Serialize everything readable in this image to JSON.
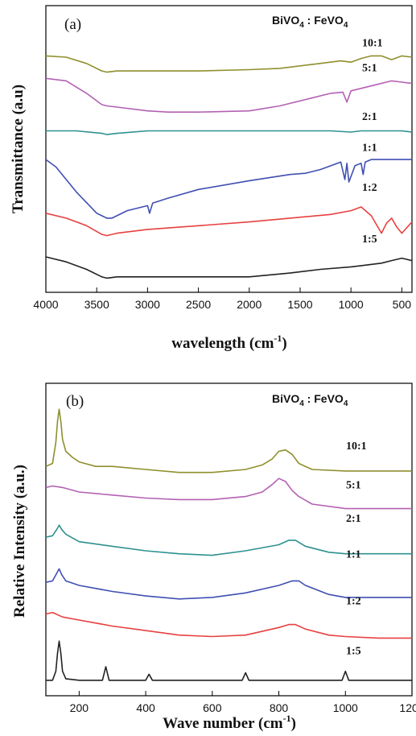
{
  "chart_data": [
    {
      "panel_label": "(a)",
      "type": "line",
      "xlabel": "wavelength (cm",
      "xlabel_sup": "-1",
      "xlabel_end": ")",
      "ylabel": "Transmittance (a.u)",
      "legend_title": "BiVO",
      "legend_title_sub1": "4",
      "legend_title_mid": " : FeVO",
      "legend_title_sub2": "4",
      "xlim": [
        4000,
        400
      ],
      "x_ticks": [
        "4000",
        "3500",
        "3000",
        "2500",
        "2000",
        "1500",
        "1000",
        "500"
      ],
      "x_tick_values": [
        4000,
        3500,
        3000,
        2500,
        2000,
        1500,
        1000,
        500
      ],
      "ylim": [
        0,
        10
      ],
      "series": [
        {
          "name": "10:1",
          "color": "#8f8f2e",
          "x": [
            4000,
            3800,
            3600,
            3450,
            3400,
            3300,
            3000,
            2500,
            2000,
            1700,
            1400,
            1100,
            1000,
            900,
            800,
            700,
            600,
            500,
            400
          ],
          "y": [
            9.05,
            9.0,
            8.75,
            8.45,
            8.4,
            8.45,
            8.45,
            8.45,
            8.5,
            8.55,
            8.7,
            8.85,
            8.8,
            8.95,
            9.05,
            9.05,
            8.9,
            9.05,
            9.0
          ]
        },
        {
          "name": "5:1",
          "color": "#b361b3",
          "x": [
            4000,
            3800,
            3600,
            3450,
            3400,
            3300,
            3000,
            2800,
            2500,
            2000,
            1700,
            1400,
            1200,
            1080,
            1040,
            1000,
            800,
            600,
            500,
            400
          ],
          "y": [
            8.15,
            8.05,
            7.55,
            7.1,
            7.05,
            7.0,
            6.85,
            6.8,
            6.8,
            6.85,
            7.05,
            7.35,
            7.55,
            7.6,
            7.2,
            7.65,
            7.85,
            8.05,
            8.0,
            7.95
          ]
        },
        {
          "name": "2:1",
          "color": "#2e9090",
          "x": [
            4000,
            3700,
            3450,
            3400,
            3300,
            3000,
            2500,
            2000,
            1500,
            1200,
            1000,
            900,
            800,
            600,
            500,
            400
          ],
          "y": [
            6.05,
            6.05,
            5.95,
            5.9,
            5.95,
            6.05,
            6.05,
            6.05,
            6.05,
            6.05,
            6.0,
            6.05,
            6.05,
            6.05,
            6.05,
            6.0
          ],
          "label_at": 6.65
        },
        {
          "name": "1:1",
          "color": "#3f4fb2",
          "x": [
            4000,
            3900,
            3700,
            3500,
            3400,
            3350,
            3200,
            3000,
            2980,
            2950,
            2800,
            2500,
            2000,
            1600,
            1450,
            1300,
            1100,
            1060,
            1040,
            1020,
            960,
            900,
            880,
            860,
            800,
            600,
            400
          ],
          "y": [
            4.9,
            4.6,
            3.6,
            2.75,
            2.55,
            2.55,
            2.85,
            3.05,
            2.75,
            3.15,
            3.35,
            3.7,
            4.05,
            4.3,
            4.35,
            4.5,
            4.8,
            4.1,
            4.75,
            4.0,
            4.65,
            4.75,
            4.3,
            4.8,
            4.9,
            4.9,
            4.9
          ],
          "label_at": 5.4
        },
        {
          "name": "1:2",
          "color": "#e84040",
          "x": [
            4000,
            3800,
            3600,
            3450,
            3400,
            3300,
            3000,
            2500,
            2000,
            1600,
            1200,
            1000,
            900,
            800,
            700,
            650,
            600,
            550,
            500,
            400
          ],
          "y": [
            2.75,
            2.55,
            2.25,
            1.9,
            1.85,
            1.95,
            2.1,
            2.25,
            2.4,
            2.55,
            2.7,
            2.85,
            3.0,
            2.65,
            1.95,
            2.35,
            2.55,
            2.2,
            1.95,
            2.4
          ],
          "label_at": 3.8
        },
        {
          "name": "1:5",
          "color": "#222222",
          "x": [
            4000,
            3800,
            3600,
            3450,
            3400,
            3300,
            3000,
            2500,
            2000,
            1600,
            1300,
            1000,
            900,
            700,
            600,
            500,
            400
          ],
          "y": [
            1.0,
            0.8,
            0.5,
            0.2,
            0.15,
            0.2,
            0.2,
            0.2,
            0.2,
            0.35,
            0.5,
            0.6,
            0.65,
            0.75,
            0.85,
            0.95,
            0.85
          ],
          "label_at": 1.75
        }
      ]
    },
    {
      "panel_label": "(b)",
      "type": "line",
      "xlabel": "Wave number (cm",
      "xlabel_sup": "-1",
      "xlabel_end": ")",
      "ylabel": "Relative Intensity (a.u.)",
      "legend_title": "BiVO",
      "legend_title_sub1": "4",
      "legend_title_mid": " : FeVO",
      "legend_title_sub2": "4",
      "xlim": [
        100,
        1200
      ],
      "x_ticks": [
        "200",
        "400",
        "600",
        "800",
        "1000",
        "1200"
      ],
      "x_tick_values": [
        200,
        400,
        600,
        800,
        1000,
        1200
      ],
      "ylim": [
        0,
        10
      ],
      "series": [
        {
          "name": "10:1",
          "color": "#8f8f2e",
          "x": [
            100,
            120,
            130,
            135,
            140,
            145,
            150,
            160,
            180,
            200,
            250,
            300,
            400,
            500,
            600,
            700,
            750,
            780,
            800,
            820,
            840,
            860,
            900,
            1000,
            1100,
            1200
          ],
          "y": [
            7.4,
            7.5,
            8.2,
            8.9,
            9.3,
            8.9,
            8.3,
            7.9,
            7.7,
            7.55,
            7.4,
            7.4,
            7.3,
            7.2,
            7.2,
            7.3,
            7.45,
            7.65,
            7.9,
            7.95,
            7.8,
            7.5,
            7.3,
            7.25,
            7.25,
            7.25
          ],
          "label_at": 8.1
        },
        {
          "name": "5:1",
          "color": "#b361b3",
          "x": [
            100,
            120,
            150,
            200,
            300,
            400,
            500,
            600,
            700,
            750,
            780,
            800,
            820,
            840,
            860,
            900,
            1000,
            1100,
            1200
          ],
          "y": [
            6.7,
            6.75,
            6.7,
            6.55,
            6.45,
            6.35,
            6.3,
            6.3,
            6.4,
            6.55,
            6.8,
            7.0,
            6.9,
            6.6,
            6.4,
            6.15,
            6.0,
            6.0,
            6.0
          ],
          "label_at": 6.8
        },
        {
          "name": "2:1",
          "color": "#2e9090",
          "x": [
            100,
            120,
            135,
            140,
            148,
            160,
            200,
            300,
            400,
            500,
            600,
            700,
            800,
            830,
            850,
            880,
            950,
            1000,
            1100,
            1200
          ],
          "y": [
            5.05,
            5.1,
            5.35,
            5.45,
            5.3,
            5.15,
            4.9,
            4.75,
            4.6,
            4.5,
            4.45,
            4.6,
            4.8,
            4.95,
            4.95,
            4.75,
            4.55,
            4.5,
            4.5,
            4.5
          ],
          "label_at": 5.7
        },
        {
          "name": "1:1",
          "color": "#3f4fb2",
          "x": [
            100,
            120,
            135,
            140,
            148,
            160,
            200,
            300,
            400,
            500,
            600,
            700,
            800,
            840,
            860,
            880,
            950,
            1000,
            1100,
            1200
          ],
          "y": [
            3.55,
            3.6,
            3.9,
            4.0,
            3.8,
            3.6,
            3.45,
            3.25,
            3.1,
            3.0,
            3.05,
            3.2,
            3.45,
            3.6,
            3.6,
            3.45,
            3.15,
            3.05,
            3.05,
            3.05
          ],
          "label_at": 4.5
        },
        {
          "name": "1:2",
          "color": "#e84040",
          "x": [
            100,
            120,
            150,
            200,
            300,
            400,
            500,
            600,
            700,
            800,
            830,
            850,
            880,
            950,
            1000,
            1100,
            1200
          ],
          "y": [
            2.5,
            2.55,
            2.4,
            2.3,
            2.1,
            1.95,
            1.8,
            1.75,
            1.8,
            2.05,
            2.15,
            2.15,
            2.0,
            1.8,
            1.75,
            1.7,
            1.7
          ],
          "label_at": 2.95
        },
        {
          "name": "1:5",
          "color": "#222222",
          "x": [
            100,
            120,
            130,
            135,
            140,
            145,
            150,
            160,
            200,
            270,
            280,
            290,
            400,
            410,
            420,
            600,
            690,
            700,
            710,
            900,
            990,
            1000,
            1010,
            1100,
            1200
          ],
          "y": [
            0.3,
            0.3,
            0.6,
            1.2,
            1.6,
            1.2,
            0.6,
            0.35,
            0.3,
            0.3,
            0.75,
            0.3,
            0.3,
            0.5,
            0.3,
            0.3,
            0.3,
            0.55,
            0.3,
            0.3,
            0.3,
            0.6,
            0.3,
            0.3,
            0.3
          ],
          "label_at": 1.3
        }
      ]
    }
  ]
}
